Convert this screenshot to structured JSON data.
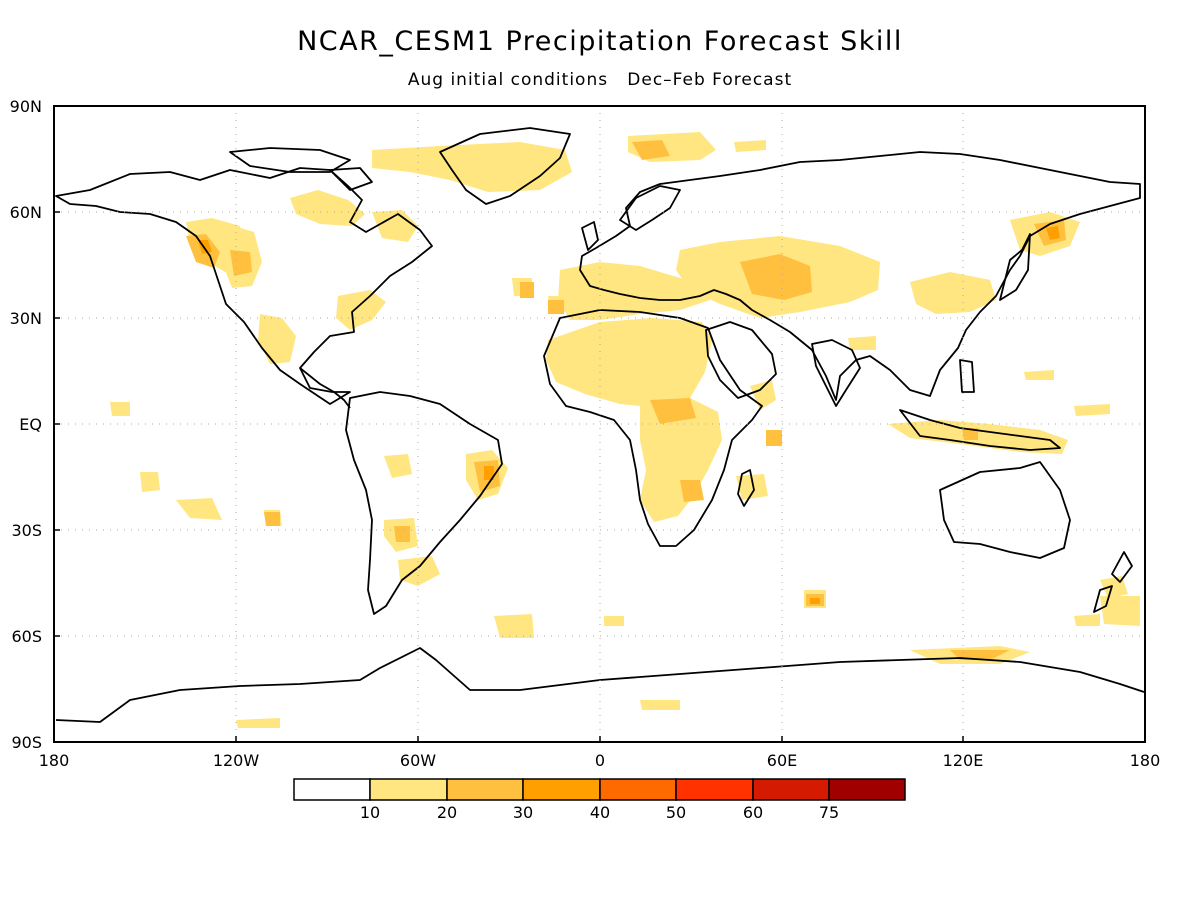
{
  "title": "NCAR_CESM1 Precipitation Forecast Skill",
  "subtitle": "Aug initial conditions   Dec–Feb Forecast",
  "map": {
    "projection": "equirectangular",
    "grid": true,
    "lat_labels": [
      "90N",
      "60N",
      "30N",
      "EQ",
      "30S",
      "60S",
      "90S"
    ],
    "lon_labels": [
      "180",
      "120W",
      "60W",
      "0",
      "60E",
      "120E",
      "180"
    ]
  },
  "legend": {
    "thresholds": [
      "10",
      "20",
      "30",
      "40",
      "50",
      "60",
      "75"
    ],
    "colors": [
      "#ffffff",
      "#ffe680",
      "#ffc040",
      "#ffa000",
      "#ff6a00",
      "#ff3200",
      "#d41a00",
      "#a00000"
    ]
  }
}
